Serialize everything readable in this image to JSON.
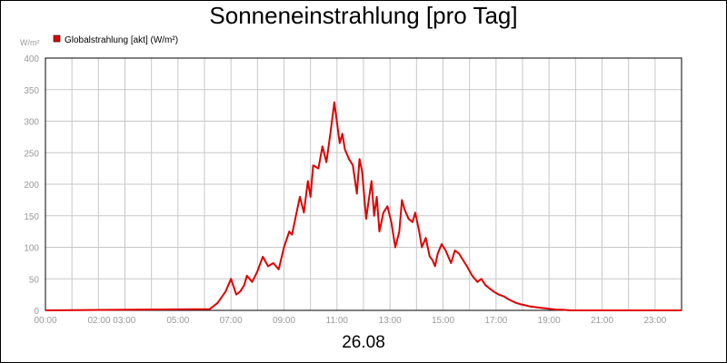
{
  "chart_data": {
    "type": "line",
    "title": "Sonneneinstrahlung [pro Tag]",
    "ylabel": "W/m²",
    "xlabel": "26.08",
    "ylim": [
      0,
      400
    ],
    "yticks": [
      0,
      50,
      100,
      150,
      200,
      250,
      300,
      350,
      400
    ],
    "xlim": [
      0,
      24
    ],
    "xtick_labels": [
      "00:00",
      "02:00 03:00",
      "05:00",
      "07:00",
      "09:00",
      "11:00",
      "13:00",
      "15:00",
      "17:00",
      "19:00",
      "21:00",
      "23:00"
    ],
    "xtick_hours": [
      0,
      2.5,
      5,
      7,
      9,
      11,
      13,
      15,
      17,
      19,
      21,
      23
    ],
    "grid": true,
    "legend": "top-left",
    "series": [
      {
        "name": "Globalstrahlung [akt] (W/m²)",
        "color": "#e00000",
        "x": [
          0,
          6.2,
          6.5,
          6.8,
          7.0,
          7.2,
          7.35,
          7.5,
          7.6,
          7.8,
          8.0,
          8.2,
          8.4,
          8.6,
          8.8,
          9.0,
          9.2,
          9.3,
          9.45,
          9.6,
          9.75,
          9.9,
          10.0,
          10.1,
          10.3,
          10.45,
          10.6,
          10.75,
          10.9,
          11.1,
          11.2,
          11.3,
          11.45,
          11.6,
          11.75,
          11.85,
          11.95,
          12.1,
          12.2,
          12.3,
          12.4,
          12.5,
          12.6,
          12.75,
          12.9,
          13.05,
          13.2,
          13.35,
          13.45,
          13.55,
          13.7,
          13.85,
          13.95,
          14.1,
          14.2,
          14.35,
          14.5,
          14.6,
          14.7,
          14.8,
          14.95,
          15.1,
          15.3,
          15.45,
          15.6,
          15.75,
          15.9,
          16.1,
          16.3,
          16.45,
          16.6,
          16.75,
          16.9,
          17.1,
          17.3,
          17.45,
          17.6,
          17.75,
          17.9,
          18.1,
          18.3,
          18.5,
          18.7,
          18.9,
          19.1,
          19.3,
          19.5,
          19.8,
          20.0,
          20.4,
          21.0,
          24
        ],
        "values": [
          0,
          2,
          12,
          30,
          50,
          25,
          30,
          40,
          55,
          45,
          62,
          85,
          70,
          75,
          65,
          100,
          125,
          120,
          150,
          180,
          155,
          205,
          180,
          230,
          225,
          260,
          235,
          280,
          330,
          265,
          280,
          255,
          240,
          230,
          185,
          240,
          220,
          145,
          175,
          205,
          150,
          180,
          125,
          155,
          165,
          140,
          100,
          125,
          175,
          160,
          145,
          140,
          155,
          125,
          100,
          115,
          85,
          80,
          70,
          90,
          105,
          95,
          75,
          95,
          90,
          80,
          70,
          55,
          45,
          50,
          40,
          35,
          30,
          25,
          22,
          18,
          15,
          12,
          10,
          8,
          6,
          5,
          4,
          3,
          2,
          1,
          1,
          0,
          0,
          0,
          0,
          0
        ]
      }
    ]
  }
}
